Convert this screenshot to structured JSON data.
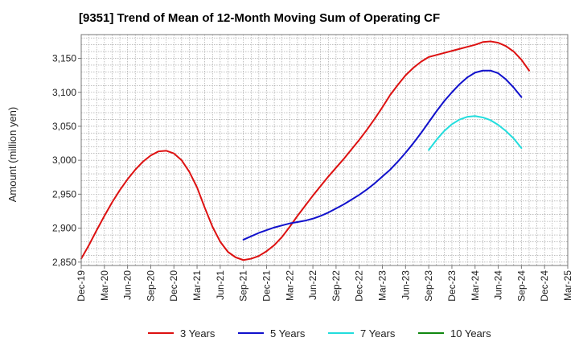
{
  "chart_data": {
    "type": "line",
    "title": "[9351]  Trend of Mean of 12-Month Moving Sum of Operating CF",
    "xlabel": "",
    "ylabel": "Amount (million yen)",
    "ylim": [
      2845,
      3185
    ],
    "yticks": [
      2850,
      2900,
      2950,
      3000,
      3050,
      3100,
      3150
    ],
    "ytick_labels": [
      "2,850",
      "2,900",
      "2,950",
      "3,000",
      "3,050",
      "3,100",
      "3,150"
    ],
    "x_start": "Dec-19",
    "x_end": "Mar-25",
    "x_tick_labels": [
      "Dec-19",
      "Mar-20",
      "Jun-20",
      "Sep-20",
      "Dec-20",
      "Mar-21",
      "Jun-21",
      "Sep-21",
      "Dec-21",
      "Mar-22",
      "Jun-22",
      "Sep-22",
      "Dec-22",
      "Mar-23",
      "Jun-23",
      "Sep-23",
      "Dec-23",
      "Mar-24",
      "Jun-24",
      "Sep-24",
      "Dec-24",
      "Mar-25"
    ],
    "grid": true,
    "legend_position": "bottom",
    "series": [
      {
        "name": "3 Years",
        "color": "#dd1111",
        "start_index": 0,
        "values": [
          2855,
          2875,
          2897,
          2918,
          2938,
          2956,
          2972,
          2986,
          2998,
          3007,
          3013,
          3014,
          3010,
          3000,
          2983,
          2960,
          2930,
          2902,
          2880,
          2865,
          2857,
          2853,
          2855,
          2859,
          2866,
          2875,
          2887,
          2902,
          2918,
          2933,
          2948,
          2962,
          2976,
          2989,
          3002,
          3016,
          3030,
          3045,
          3061,
          3078,
          3096,
          3111,
          3125,
          3136,
          3145,
          3152,
          3155,
          3158,
          3161,
          3164,
          3167,
          3170,
          3174,
          3175,
          3173,
          3168,
          3160,
          3148,
          3132
        ]
      },
      {
        "name": "5 Years",
        "color": "#1111cc",
        "start_index": 21,
        "values": [
          2883,
          2888,
          2893,
          2897,
          2901,
          2904,
          2907,
          2909,
          2911,
          2914,
          2918,
          2923,
          2929,
          2935,
          2942,
          2949,
          2957,
          2966,
          2976,
          2986,
          2998,
          3011,
          3025,
          3040,
          3056,
          3072,
          3087,
          3100,
          3112,
          3122,
          3129,
          3132,
          3132,
          3128,
          3119,
          3107,
          3093
        ]
      },
      {
        "name": "7 Years",
        "color": "#22dddd",
        "start_index": 45,
        "values": [
          3015,
          3030,
          3043,
          3053,
          3060,
          3064,
          3065,
          3063,
          3059,
          3052,
          3043,
          3032,
          3018
        ]
      },
      {
        "name": "10 Years",
        "color": "#118811",
        "start_index": 0,
        "values": []
      }
    ]
  }
}
